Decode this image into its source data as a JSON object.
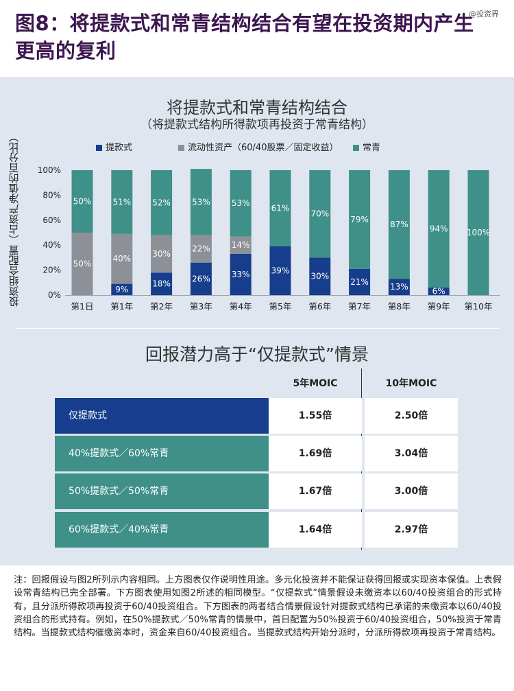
{
  "header": {
    "title": "图8：将提款式和常青结构结合有望在投资期内产生更高的复利",
    "watermark": "@投资界"
  },
  "colors": {
    "drawdown": "#173e8c",
    "liquid": "#8d9197",
    "evergreen": "#3e9089",
    "title": "#3d1650"
  },
  "chart_data": {
    "type": "bar",
    "stacked": true,
    "title": "将提款式和常青结构结合",
    "subtitle": "（将提款式结构所得款项再投资于常青结构）",
    "ylabel": "投资组合配置（占资产净值的百分比）",
    "xlabel": "",
    "ylim": [
      0,
      100
    ],
    "yticks": [
      "0%",
      "20%",
      "40%",
      "60%",
      "80%",
      "100%"
    ],
    "legend_position": "top",
    "categories": [
      "第1日",
      "第1年",
      "第2年",
      "第3年",
      "第4年",
      "第5年",
      "第6年",
      "第7年",
      "第8年",
      "第9年",
      "第10年"
    ],
    "series": [
      {
        "name": "提款式",
        "values": [
          0,
          9,
          18,
          26,
          33,
          39,
          30,
          21,
          13,
          6,
          0
        ],
        "labels": [
          "",
          "9%",
          "18%",
          "26%",
          "33%",
          "39%",
          "30%",
          "21%",
          "13%",
          "6%",
          ""
        ]
      },
      {
        "name": "流动性资产（60/40股票／固定收益）",
        "values": [
          50,
          40,
          30,
          22,
          14,
          0,
          0,
          0,
          0,
          0,
          0
        ],
        "labels": [
          "50%",
          "40%",
          "30%",
          "22%",
          "14%",
          "",
          "",
          "",
          "",
          "",
          ""
        ]
      },
      {
        "name": "常青",
        "values": [
          50,
          51,
          52,
          53,
          53,
          61,
          70,
          79,
          87,
          94,
          100
        ],
        "labels": [
          "50%",
          "51%",
          "52%",
          "53%",
          "53%",
          "61%",
          "70%",
          "79%",
          "87%",
          "94%",
          "100%"
        ]
      }
    ]
  },
  "table": {
    "title": "回报潜力高于“仅提款式”情景",
    "col_5": "5年MOIC",
    "col_10": "10年MOIC",
    "rows": [
      {
        "label": "仅提款式",
        "v5": "1.55倍",
        "v10": "2.50倍",
        "color": "#173e8c"
      },
      {
        "label": "40%提款式／60%常青",
        "v5": "1.69倍",
        "v10": "3.04倍",
        "color": "#3e9089"
      },
      {
        "label": "50%提款式／50%常青",
        "v5": "1.67倍",
        "v10": "3.00倍",
        "color": "#3e9089"
      },
      {
        "label": "60%提款式／40%常青",
        "v5": "1.64倍",
        "v10": "2.97倍",
        "color": "#3e9089"
      }
    ]
  },
  "note": "注：回报假设与图2所列示内容相同。上方图表仅作说明性用途。多元化投资并不能保证获得回报或实现资本保值。上表假设常青结构已完全部署。下方图表使用如图2所述的相同模型。“仅提款式”情景假设未缴资本以60/40投资组合的形式持有，且分派所得款项再投资于60/40投资组合。下方图表的两者结合情景假设针对提款式结构已承诺的未缴资本以60/40投资组合的形式持有。例如，在50%提款式／50%常青的情景中，首日配置为50%投资于60/40投资组合，50%投资于常青结构。当提款式结构催缴资本时，资金来自60/40投资组合。当提款式结构开始分派时，分派所得款项再投资于常青结构。"
}
